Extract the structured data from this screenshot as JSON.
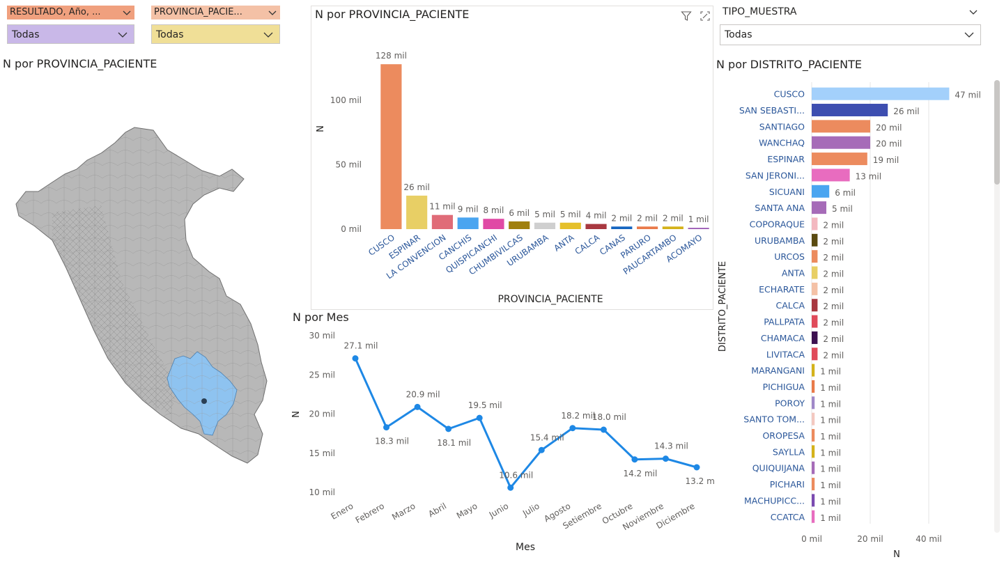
{
  "slicers": {
    "resultado": {
      "label": "RESULTADO, Año, ...",
      "value": "Todas",
      "color": "#f0a07e",
      "box_color": "#c9b8e8"
    },
    "provincia": {
      "label": "PROVINCIA_PACIE...",
      "value": "Todas",
      "color": "#f4c1a6",
      "box_color": "#f0df97"
    },
    "tipo_muestra": {
      "label": "TIPO_MUESTRA",
      "value": "Todas"
    }
  },
  "map": {
    "title": "N por PROVINCIA_PACIENTE",
    "base_color": "#b8b8b8",
    "highlight_color": "#8ec3f0"
  },
  "colors": {
    "axis_text": "#605e5c",
    "link_text": "#2b579a",
    "grid": "#e6e6e6",
    "line": "#1e88e5"
  },
  "chart_data": [
    {
      "id": "provincia_bar",
      "type": "bar",
      "title": "N por PROVINCIA_PACIENTE",
      "xlabel": "PROVINCIA_PACIENTE",
      "ylabel": "N",
      "ylim": [
        0,
        140000
      ],
      "yticks": [
        {
          "v": 0,
          "label": "0 mil"
        },
        {
          "v": 50000,
          "label": "50 mil"
        },
        {
          "v": 100000,
          "label": "100 mil"
        }
      ],
      "categories": [
        "CUSCO",
        "ESPINAR",
        "LA CONVENCION",
        "CANCHIS",
        "QUISPICANCHI",
        "CHUMBIVILCAS",
        "URUBAMBA",
        "ANTA",
        "CALCA",
        "CANAS",
        "PARURO",
        "PAUCARTAMBO",
        "ACOMAYO"
      ],
      "values": [
        128000,
        26000,
        11000,
        9000,
        8000,
        6000,
        5000,
        5000,
        4000,
        2000,
        2000,
        2000,
        1000
      ],
      "labels": [
        "128 mil",
        "26 mil",
        "11 mil",
        "9 mil",
        "8 mil",
        "6 mil",
        "5 mil",
        "5 mil",
        "4 mil",
        "2 mil",
        "2 mil",
        "2 mil",
        "1 mil"
      ],
      "bar_colors": [
        "#ec8b5e",
        "#e8cf65",
        "#e06c78",
        "#4aa5f0",
        "#e04aa5",
        "#a0800e",
        "#cfcfcf",
        "#e5c02b",
        "#a83840",
        "#1565c0",
        "#e97a4a",
        "#d4b21a",
        "#9c5bb5"
      ]
    },
    {
      "id": "mes_line",
      "type": "line",
      "title": "N por Mes",
      "xlabel": "Mes",
      "ylabel": "N",
      "ylim": [
        10000,
        30000
      ],
      "yticks": [
        {
          "v": 10000,
          "label": "10 mil"
        },
        {
          "v": 15000,
          "label": "15 mil"
        },
        {
          "v": 20000,
          "label": "20 mil"
        },
        {
          "v": 25000,
          "label": "25 mil"
        },
        {
          "v": 30000,
          "label": "30 mil"
        }
      ],
      "categories": [
        "Enero",
        "Febrero",
        "Marzo",
        "Abril",
        "Mayo",
        "Junio",
        "Julio",
        "Agosto",
        "Setiembre",
        "Octubre",
        "Noviembre",
        "Diciembre"
      ],
      "values": [
        27100,
        18300,
        20900,
        18100,
        19500,
        10600,
        15400,
        18200,
        18000,
        14200,
        14300,
        13200
      ],
      "labels": [
        "27.1 mil",
        "18.3 mil",
        "20.9 mil",
        "18.1 mil",
        "19.5 mil",
        "10.6 mil",
        "15.4 mil",
        "18.2 mil",
        "18.0 mil",
        "14.2 mil",
        "14.3 mil",
        "13.2 mil"
      ]
    },
    {
      "id": "distrito_bar",
      "type": "bar",
      "orientation": "horizontal",
      "title": "N por DISTRITO_PACIENTE",
      "xlabel": "N",
      "ylabel": "DISTRITO_PACIENTE",
      "xlim": [
        0,
        50000
      ],
      "xticks": [
        {
          "v": 0,
          "label": "0 mil"
        },
        {
          "v": 20000,
          "label": "20 mil"
        },
        {
          "v": 40000,
          "label": "40 mil"
        }
      ],
      "categories": [
        "CUSCO",
        "SAN SEBASTI...",
        "SANTIAGO",
        "WANCHAQ",
        "ESPINAR",
        "SAN JERONI...",
        "SICUANI",
        "SANTA ANA",
        "COPORAQUE",
        "URUBAMBA",
        "URCOS",
        "ANTA",
        "ECHARATE",
        "CALCA",
        "PALLPATA",
        "CHAMACA",
        "LIVITACA",
        "MARANGANI",
        "PICHIGUA",
        "POROY",
        "SANTO TOM...",
        "OROPESA",
        "SAYLLA",
        "QUIQUIJANA",
        "PICHARI",
        "MACHUPICC...",
        "CCATCA"
      ],
      "values": [
        47000,
        26000,
        20000,
        20000,
        19000,
        13000,
        6000,
        5000,
        2000,
        2000,
        2000,
        2000,
        2000,
        2000,
        2000,
        2000,
        2000,
        1000,
        1000,
        1000,
        1000,
        1000,
        1000,
        1000,
        1000,
        1000,
        1000
      ],
      "labels": [
        "47 mil",
        "26 mil",
        "20 mil",
        "20 mil",
        "19 mil",
        "13 mil",
        "6 mil",
        "5 mil",
        "2 mil",
        "2 mil",
        "2 mil",
        "2 mil",
        "2 mil",
        "2 mil",
        "2 mil",
        "2 mil",
        "2 mil",
        "1 mil",
        "1 mil",
        "1 mil",
        "1 mil",
        "1 mil",
        "1 mil",
        "1 mil",
        "1 mil",
        "1 mil",
        "1 mil"
      ],
      "bar_colors": [
        "#a3d0fb",
        "#3d4eb0",
        "#ec8b5e",
        "#a66bb8",
        "#ec8b5e",
        "#e86cbf",
        "#4aa5f0",
        "#a66bb8",
        "#f3b8c0",
        "#5a4a10",
        "#ec8b5e",
        "#e8cf65",
        "#f4c1a6",
        "#a83840",
        "#e04a5a",
        "#3d1050",
        "#e04a5a",
        "#d4b21a",
        "#e97a4a",
        "#a088c8",
        "#f3c8c0",
        "#ec8b5e",
        "#d4b21a",
        "#a66bb8",
        "#ec8b5e",
        "#7a4ab0",
        "#e86cbf"
      ]
    }
  ]
}
